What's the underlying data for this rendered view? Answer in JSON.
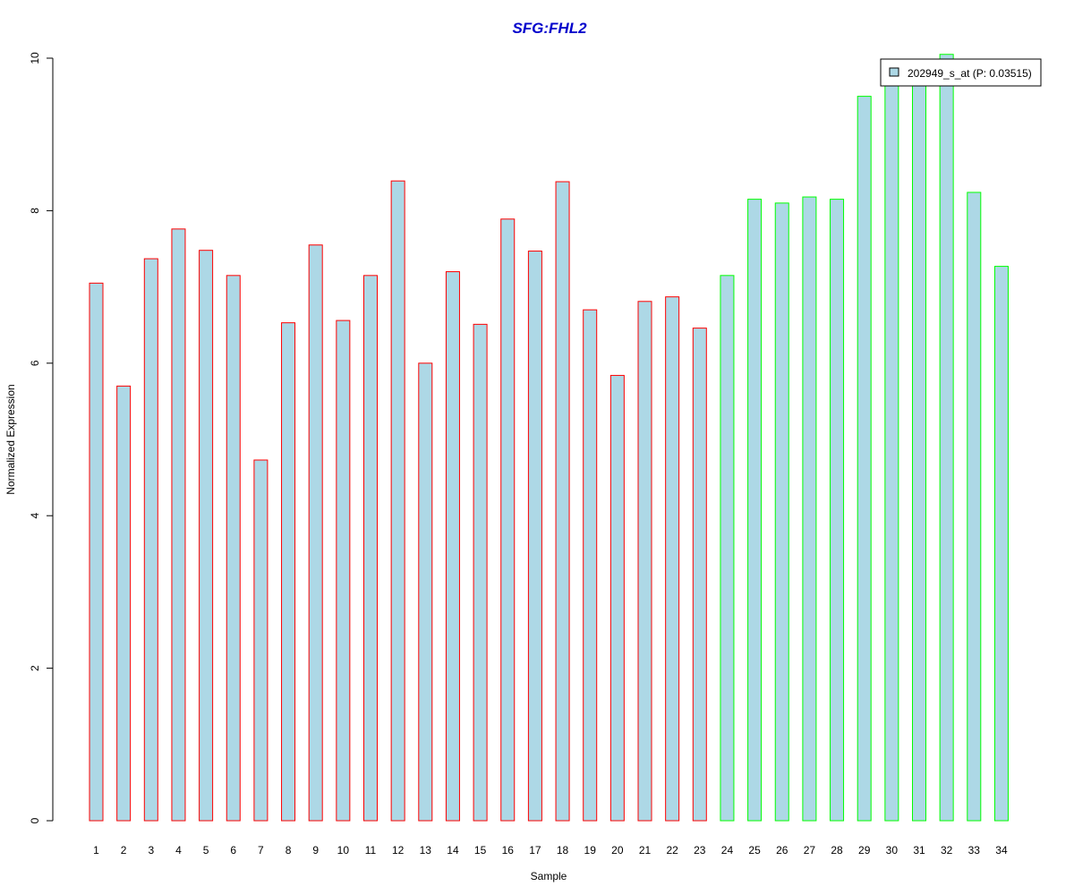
{
  "chart_data": {
    "type": "bar",
    "title": "SFG:FHL2",
    "xlabel": "Sample",
    "ylabel": "Normalized Expression",
    "ylim": [
      0,
      10
    ],
    "yticks": [
      "0",
      "2",
      "4",
      "6",
      "8",
      "10"
    ],
    "grid": false,
    "legend_position": "top-right",
    "categories": [
      "1",
      "2",
      "3",
      "4",
      "5",
      "6",
      "7",
      "8",
      "9",
      "10",
      "11",
      "12",
      "13",
      "14",
      "15",
      "16",
      "17",
      "18",
      "19",
      "20",
      "21",
      "22",
      "23",
      "24",
      "25",
      "26",
      "27",
      "28",
      "29",
      "30",
      "31",
      "32",
      "33",
      "34"
    ],
    "series": [
      {
        "name": "202949_s_at (P: 0.03515)",
        "values": [
          7.05,
          5.7,
          7.37,
          7.76,
          7.48,
          7.15,
          4.73,
          6.53,
          7.55,
          6.56,
          7.15,
          8.39,
          6.0,
          7.2,
          6.51,
          7.89,
          7.47,
          8.38,
          6.7,
          5.84,
          6.81,
          6.87,
          6.46,
          7.15,
          8.15,
          8.1,
          8.18,
          8.15,
          9.5,
          9.85,
          9.9,
          10.05,
          8.24,
          7.27
        ],
        "fill": "#add8e6"
      }
    ],
    "groups": [
      {
        "from_index": 0,
        "to_index": 22,
        "border_color": "#ff0000"
      },
      {
        "from_index": 23,
        "to_index": 33,
        "border_color": "#00ff00"
      }
    ],
    "colors": {
      "title": "#0000cc",
      "axis": "#000000",
      "legend_border": "#000000"
    }
  }
}
